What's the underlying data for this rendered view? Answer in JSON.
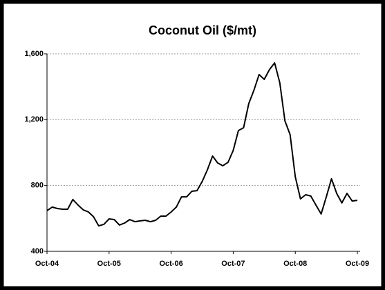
{
  "chart_data": {
    "type": "line",
    "title": "Coconut Oil ($/mt)",
    "categories": [
      "Oct-04",
      null,
      null,
      null,
      null,
      null,
      null,
      null,
      null,
      null,
      null,
      null,
      "Oct-05",
      null,
      null,
      null,
      null,
      null,
      null,
      null,
      null,
      null,
      null,
      null,
      "Oct-06",
      null,
      null,
      null,
      null,
      null,
      null,
      null,
      null,
      null,
      null,
      null,
      "Oct-07",
      null,
      null,
      null,
      null,
      null,
      null,
      null,
      null,
      null,
      null,
      null,
      "Oct-08",
      null,
      null,
      null,
      null,
      null,
      null,
      null,
      null,
      null,
      null,
      null,
      "Oct-09"
    ],
    "series": [
      {
        "name": "Coconut Oil",
        "color": "#000000",
        "values": [
          647,
          669,
          660,
          656,
          656,
          715,
          681,
          652,
          639,
          610,
          555,
          564,
          597,
          593,
          560,
          572,
          593,
          580,
          585,
          589,
          580,
          589,
          614,
          614,
          639,
          669,
          731,
          731,
          765,
          769,
          824,
          895,
          979,
          937,
          920,
          941,
          1013,
          1134,
          1151,
          1298,
          1378,
          1474,
          1445,
          1504,
          1545,
          1424,
          1193,
          1109,
          853,
          719,
          744,
          736,
          681,
          627,
          731,
          841,
          752,
          694,
          752,
          706,
          710
        ]
      }
    ],
    "ylim": [
      400,
      1600
    ],
    "yticks": [
      400,
      {
        "value": 800,
        "label": "800"
      },
      {
        "value": 1200,
        "label": "1,200"
      },
      {
        "value": 1600,
        "label": "1,600"
      }
    ],
    "grid": true
  }
}
